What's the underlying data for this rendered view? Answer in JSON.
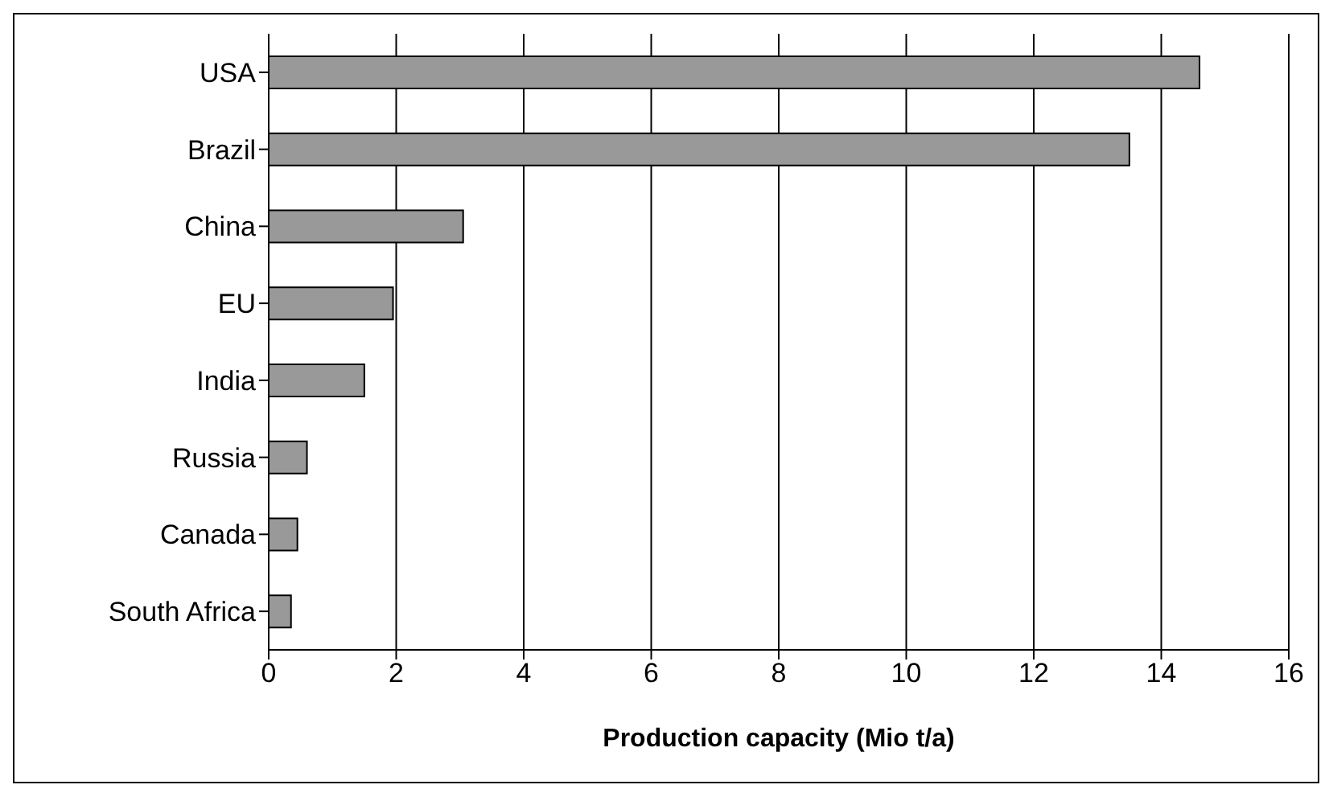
{
  "chart_data": {
    "type": "bar",
    "orientation": "horizontal",
    "categories": [
      "USA",
      "Brazil",
      "China",
      "EU",
      "India",
      "Russia",
      "Canada",
      "South Africa"
    ],
    "values": [
      14.6,
      13.5,
      3.05,
      1.95,
      1.5,
      0.6,
      0.45,
      0.35
    ],
    "color": "#999999",
    "xlabel": "Production capacity (Mio t/a)",
    "xlim": [
      0,
      16
    ],
    "xticks": [
      0,
      2,
      4,
      6,
      8,
      10,
      12,
      14,
      16
    ],
    "grid": "x"
  }
}
